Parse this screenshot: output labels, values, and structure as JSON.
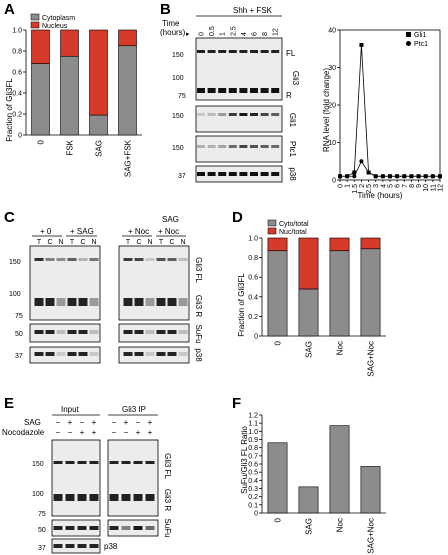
{
  "panels": {
    "A": {
      "label": "A",
      "chart_data": {
        "type": "bar",
        "stacked": true,
        "ylabel": "Fraction of Gli3FL",
        "ylim": [
          0,
          1
        ],
        "yticks": [
          "0",
          "0.2",
          "0.4",
          "0.6",
          "0.8",
          "1.0"
        ],
        "categories": [
          "0",
          "FSK",
          "SAG",
          "SAG+FSK"
        ],
        "legend": [
          "Cytoplasm",
          "Nucleus"
        ],
        "legend_position": "top-left",
        "colors": [
          "#8c8c8c",
          "#d63a2a"
        ],
        "series": [
          {
            "name": "Cytoplasm",
            "values": [
              0.68,
              0.75,
              0.19,
              0.85
            ]
          },
          {
            "name": "Nucleus",
            "values": [
              0.32,
              0.25,
              0.81,
              0.15
            ]
          }
        ]
      }
    },
    "B": {
      "label": "B",
      "condition": "Shh + FSK",
      "time_header": "Time\n(hours)",
      "timepoints": [
        "0",
        "0.5",
        "1",
        "2.5",
        "4",
        "6",
        "8",
        "12"
      ],
      "blot_labels": [
        "FL",
        "Gli3",
        "R",
        "Gli1",
        "Ptc1",
        "p38"
      ],
      "mw": [
        "150",
        "100",
        "75",
        "150",
        "150",
        "37"
      ],
      "chart_data": {
        "type": "line",
        "ylabel": "RNA level (fold change)",
        "xlabel": "Time (hours)",
        "ylim": [
          0,
          40
        ],
        "yticks": [
          "0",
          "10",
          "20",
          "30",
          "40"
        ],
        "xticks": [
          "0",
          "1",
          "1.5",
          "2",
          "2.5",
          "3",
          "4",
          "5",
          "6",
          "7",
          "8",
          "9",
          "10",
          "11",
          "12"
        ],
        "x": [
          0,
          1,
          1.5,
          2,
          2.5,
          3,
          4,
          5,
          6,
          7,
          8,
          9,
          10,
          11,
          12
        ],
        "series": [
          {
            "name": "Gli1",
            "marker": "square",
            "values": [
              1,
              1,
              2,
              36,
              2,
              1,
              1,
              1,
              1,
              1,
              1,
              1,
              1,
              1,
              1
            ]
          },
          {
            "name": "Ptc1",
            "marker": "circle",
            "values": [
              1,
              1,
              1,
              5,
              2,
              1,
              1,
              1,
              1,
              1,
              1,
              1,
              1,
              1,
              1
            ]
          }
        ],
        "legend_position": "top-right"
      }
    },
    "C": {
      "label": "C",
      "groups": [
        "+ 0",
        "+ SAG",
        "+ Noc",
        "SAG\n+ Noc"
      ],
      "lanes": [
        "T",
        "C",
        "N",
        "T",
        "C",
        "N"
      ],
      "blot_labels": [
        "Gli3 FL",
        "Gli3 R",
        "SuFu",
        "p38"
      ],
      "mw": [
        "150",
        "100",
        "75",
        "50",
        "37"
      ]
    },
    "D": {
      "label": "D",
      "chart_data": {
        "type": "bar",
        "stacked": true,
        "ylabel": "Fraction of Gli3FL",
        "ylim": [
          0,
          1
        ],
        "yticks": [
          "0",
          "0.2",
          "0.4",
          "0.6",
          "0.8",
          "1.0"
        ],
        "categories": [
          "0",
          "SAG",
          "Noc",
          "SAG+Noc"
        ],
        "legend": [
          "Cyto/total",
          "Nuc/total"
        ],
        "legend_position": "top-left",
        "colors": [
          "#8c8c8c",
          "#d63a2a"
        ],
        "series": [
          {
            "name": "Cyto/total",
            "values": [
              0.87,
              0.48,
              0.87,
              0.89
            ]
          },
          {
            "name": "Nuc/total",
            "values": [
              0.13,
              0.52,
              0.13,
              0.11
            ]
          }
        ]
      }
    },
    "E": {
      "label": "E",
      "groups": [
        "Input",
        "Gli3 IP"
      ],
      "row_labels": [
        "SAG",
        "Nocodazole"
      ],
      "sag_signs": [
        "−",
        "+",
        "−",
        "+"
      ],
      "noc_signs": [
        "−",
        "−",
        "+",
        "+"
      ],
      "blot_labels": [
        "Gli3 FL",
        "Gli3 R",
        "SuFu",
        "p38"
      ],
      "mw": [
        "150",
        "100",
        "75",
        "50",
        "37"
      ]
    },
    "F": {
      "label": "F",
      "chart_data": {
        "type": "bar",
        "ylabel": "SuFu/Gli3 FL Ratio",
        "ylim": [
          0,
          1.2
        ],
        "yticks": [
          "0",
          "0.1",
          "0.2",
          "0.3",
          "0.4",
          "0.5",
          "0.6",
          "0.7",
          "0.8",
          "0.9",
          "1.0",
          "1.1",
          "1.2"
        ],
        "categories": [
          "0",
          "SAG",
          "Noc",
          "SAG+Noc"
        ],
        "colors": [
          "#8c8c8c"
        ],
        "series": [
          {
            "values": [
              0.86,
              0.32,
              1.07,
              0.57
            ]
          }
        ]
      }
    }
  }
}
